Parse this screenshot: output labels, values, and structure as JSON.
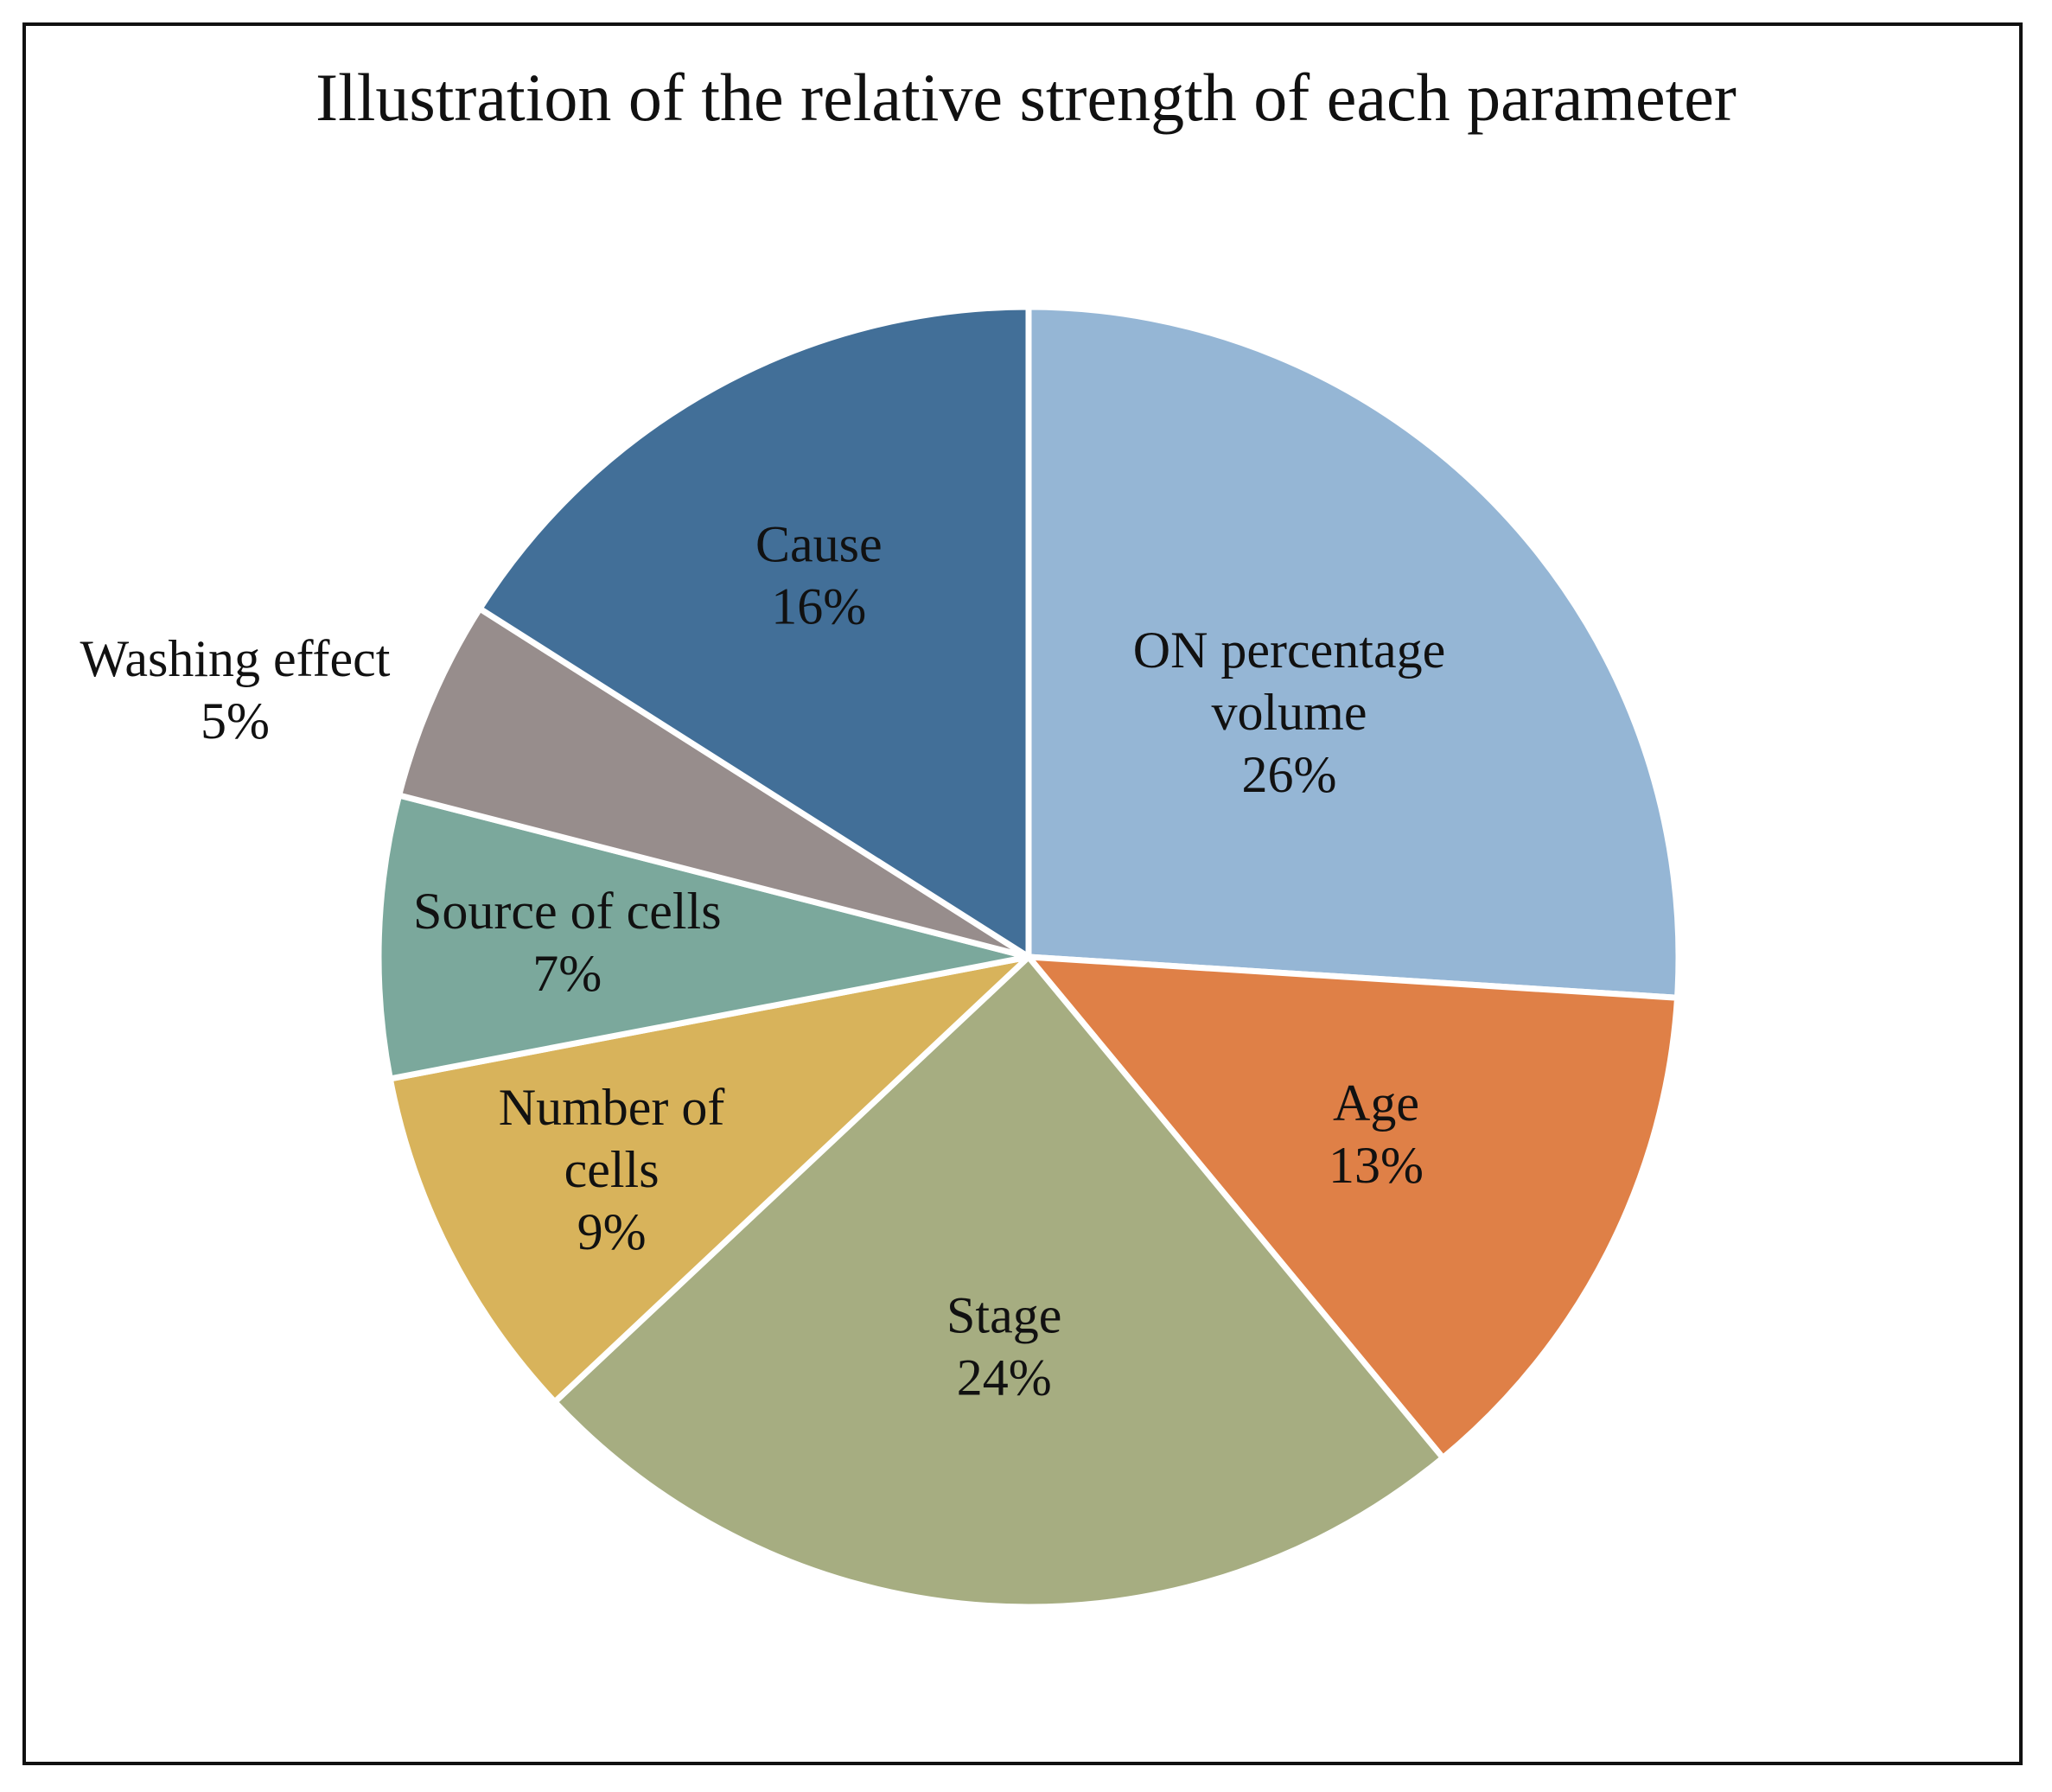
{
  "chart_data": {
    "type": "pie",
    "title": "Illustration of the relative strength of each parameter",
    "slices": [
      {
        "label": "ON percentage volume",
        "label_lines": [
          "ON percentage",
          "volume"
        ],
        "value": 26,
        "value_label": "26%",
        "color": "#95B6D5"
      },
      {
        "label": "Age",
        "label_lines": [
          "Age"
        ],
        "value": 13,
        "value_label": "13%",
        "color": "#DF8047"
      },
      {
        "label": "Stage",
        "label_lines": [
          "Stage"
        ],
        "value": 24,
        "value_label": "24%",
        "color": "#A6AD81"
      },
      {
        "label": "Number of cells",
        "label_lines": [
          "Number of",
          "cells"
        ],
        "value": 9,
        "value_label": "9%",
        "color": "#D8B35B"
      },
      {
        "label": "Source of cells",
        "label_lines": [
          "Source of cells"
        ],
        "value": 7,
        "value_label": "7%",
        "color": "#7BA89C"
      },
      {
        "label": "Washing effect",
        "label_lines": [
          "Washing effect"
        ],
        "value": 5,
        "value_label": "5%",
        "color": "#978D8C"
      },
      {
        "label": "Cause",
        "label_lines": [
          "Cause"
        ],
        "value": 16,
        "value_label": "16%",
        "color": "#426F98"
      }
    ],
    "start": "12 o'clock",
    "direction": "clockwise",
    "legend": "none"
  }
}
